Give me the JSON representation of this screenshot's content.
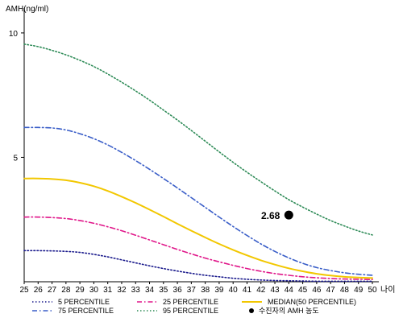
{
  "chart_data": {
    "type": "line",
    "ylabel": "AMH(ng/ml)",
    "xlabel": "나이",
    "xlim": [
      25,
      50
    ],
    "ylim": [
      0,
      11
    ],
    "x_ticks": [
      25,
      26,
      27,
      28,
      29,
      30,
      31,
      32,
      33,
      34,
      35,
      36,
      37,
      38,
      39,
      40,
      41,
      42,
      43,
      44,
      45,
      46,
      47,
      48,
      49,
      50
    ],
    "y_ticks": [
      5,
      10
    ],
    "grid": false,
    "legend_position": "bottom",
    "series": [
      {
        "name": "5 PERCENTILE",
        "color": "#1a1a8c",
        "dash": "dotted",
        "x": [
          25,
          26,
          27,
          28,
          29,
          30,
          31,
          32,
          33,
          34,
          35,
          36,
          37,
          38,
          39,
          40,
          41,
          42,
          43,
          44,
          45,
          46,
          47,
          48,
          49,
          50
        ],
        "values": [
          1.25,
          1.25,
          1.24,
          1.22,
          1.18,
          1.1,
          1.0,
          0.88,
          0.76,
          0.64,
          0.53,
          0.43,
          0.34,
          0.26,
          0.2,
          0.14,
          0.1,
          0.07,
          0.05,
          0.04,
          0.03,
          0.02,
          0.02,
          0.02,
          0.02,
          0.02
        ]
      },
      {
        "name": "75 PERCENTILE",
        "color": "#3a5ec8",
        "dash": "dashdot",
        "x": [
          25,
          26,
          27,
          28,
          29,
          30,
          31,
          32,
          33,
          34,
          35,
          36,
          37,
          38,
          39,
          40,
          41,
          42,
          43,
          44,
          45,
          46,
          47,
          48,
          49,
          50
        ],
        "values": [
          6.2,
          6.2,
          6.18,
          6.1,
          5.95,
          5.75,
          5.5,
          5.2,
          4.87,
          4.52,
          4.15,
          3.77,
          3.38,
          2.99,
          2.6,
          2.22,
          1.86,
          1.52,
          1.22,
          0.96,
          0.74,
          0.57,
          0.45,
          0.36,
          0.3,
          0.26
        ]
      },
      {
        "name": "25 PERCENTILE",
        "color": "#e0178a",
        "dash": "dashdot",
        "x": [
          25,
          26,
          27,
          28,
          29,
          30,
          31,
          32,
          33,
          34,
          35,
          36,
          37,
          38,
          39,
          40,
          41,
          42,
          43,
          44,
          45,
          46,
          47,
          48,
          49,
          50
        ],
        "values": [
          2.6,
          2.6,
          2.58,
          2.54,
          2.46,
          2.35,
          2.21,
          2.05,
          1.87,
          1.68,
          1.49,
          1.3,
          1.12,
          0.95,
          0.8,
          0.66,
          0.53,
          0.42,
          0.33,
          0.26,
          0.2,
          0.16,
          0.13,
          0.11,
          0.1,
          0.09
        ]
      },
      {
        "name": "95 PERCENTILE",
        "color": "#2e8b57",
        "dash": "dotted",
        "x": [
          25,
          26,
          27,
          28,
          29,
          30,
          31,
          32,
          33,
          34,
          35,
          36,
          37,
          38,
          39,
          40,
          41,
          42,
          43,
          44,
          45,
          46,
          47,
          48,
          49,
          50
        ],
        "values": [
          9.55,
          9.45,
          9.3,
          9.12,
          8.9,
          8.65,
          8.35,
          8.02,
          7.67,
          7.3,
          6.9,
          6.5,
          6.08,
          5.65,
          5.22,
          4.8,
          4.4,
          4.02,
          3.65,
          3.3,
          3.0,
          2.72,
          2.46,
          2.24,
          2.04,
          1.88
        ]
      },
      {
        "name": "MEDIAN(50 PERCENTILE)",
        "color": "#f2c700",
        "dash": "solid",
        "x": [
          25,
          26,
          27,
          28,
          29,
          30,
          31,
          32,
          33,
          34,
          35,
          36,
          37,
          38,
          39,
          40,
          41,
          42,
          43,
          44,
          45,
          46,
          47,
          48,
          49,
          50
        ],
        "values": [
          4.15,
          4.15,
          4.13,
          4.08,
          3.98,
          3.84,
          3.65,
          3.42,
          3.17,
          2.9,
          2.62,
          2.33,
          2.05,
          1.78,
          1.52,
          1.28,
          1.06,
          0.86,
          0.69,
          0.54,
          0.42,
          0.32,
          0.25,
          0.2,
          0.17,
          0.15
        ]
      }
    ],
    "points": [
      {
        "name": "수진자의 AMH 농도",
        "x": 44,
        "y": 2.68,
        "label": "2.68",
        "color": "#000000"
      }
    ]
  }
}
